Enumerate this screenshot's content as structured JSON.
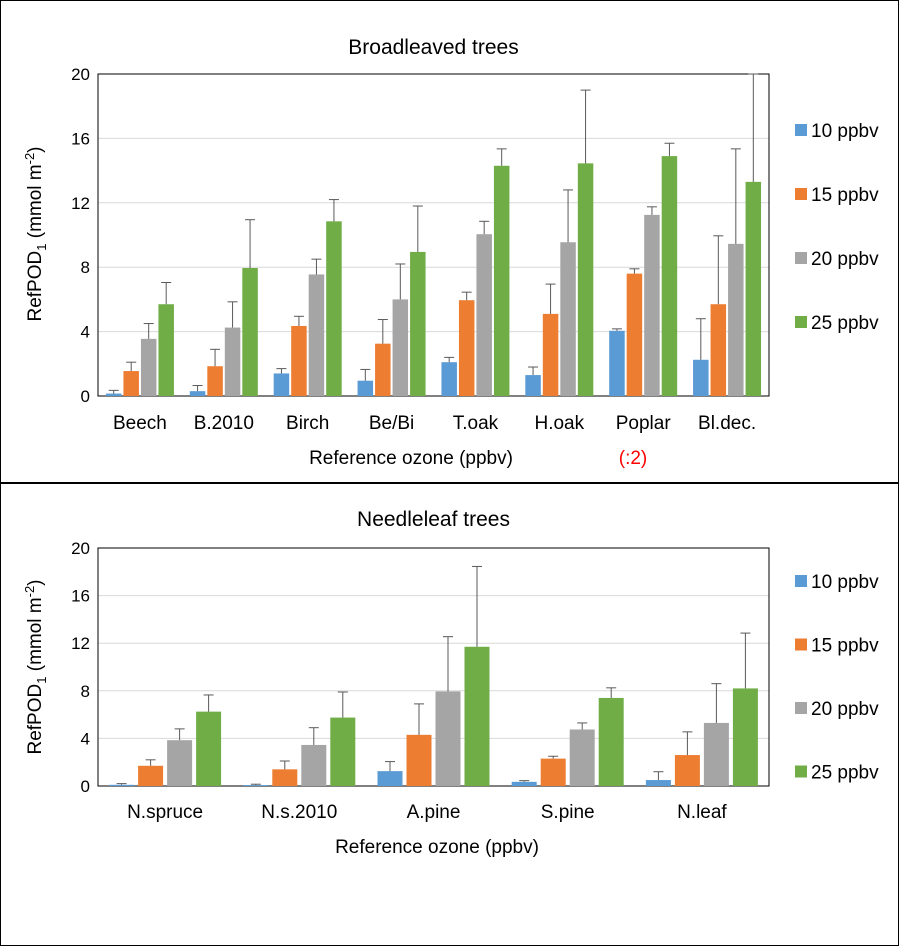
{
  "colors": {
    "10 ppbv": "#5B9BD5",
    "15 ppbv": "#ED7D31",
    "20 ppbv": "#A5A5A5",
    "25 ppbv": "#70AD47",
    "grid": "#d9d9d9",
    "error_bar": "#595959",
    "note": "#ff0000"
  },
  "chart_data": [
    {
      "type": "bar",
      "title": "Broadleaved  trees",
      "xlabel": "Reference ozone (ppbv)",
      "xlabel_note": "(:2)",
      "ylabel": "RefPOD",
      "ylabel_sub": "1",
      "ylabel_unit": " (mmol m",
      "ylabel_sup": "-2",
      "ylabel_end": ")",
      "ylim": [
        0,
        20
      ],
      "yticks": [
        "0",
        "4",
        "8",
        "12",
        "16",
        "20"
      ],
      "grid": true,
      "legend_position": "right",
      "categories": [
        "Beech",
        "B.2010",
        "Birch",
        "Be/Bi",
        "T.oak",
        "H.oak",
        "Poplar",
        "Bl.dec."
      ],
      "series": [
        {
          "name": "10 ppbv",
          "values": [
            0.15,
            0.3,
            1.4,
            0.95,
            2.1,
            1.3,
            4.05,
            2.25
          ],
          "errors": [
            0.2,
            0.35,
            0.3,
            0.7,
            0.3,
            0.5,
            0.12,
            2.55
          ]
        },
        {
          "name": "15 ppbv",
          "values": [
            1.55,
            1.85,
            4.35,
            3.25,
            5.95,
            5.1,
            7.6,
            5.7
          ],
          "errors": [
            0.55,
            1.05,
            0.6,
            1.5,
            0.5,
            1.85,
            0.3,
            4.25
          ]
        },
        {
          "name": "20 ppbv",
          "values": [
            3.55,
            4.25,
            7.55,
            6.0,
            10.05,
            9.55,
            11.25,
            9.45
          ],
          "errors": [
            0.95,
            1.6,
            0.95,
            2.2,
            0.8,
            3.25,
            0.5,
            5.9
          ]
        },
        {
          "name": "25 ppbv",
          "values": [
            5.7,
            7.95,
            10.85,
            8.95,
            14.3,
            14.45,
            14.9,
            13.3
          ],
          "errors": [
            1.35,
            3.0,
            1.35,
            2.85,
            1.05,
            4.55,
            0.8,
            6.7
          ]
        }
      ]
    },
    {
      "type": "bar",
      "title": "Needleleaf trees",
      "xlabel": "Reference ozone (ppbv)",
      "ylabel": "RefPOD",
      "ylabel_sub": "1",
      "ylabel_unit": " (mmol m",
      "ylabel_sup": "-2",
      "ylabel_end": ")",
      "ylim": [
        0,
        20
      ],
      "yticks": [
        "0",
        "4",
        "8",
        "12",
        "16",
        "20"
      ],
      "grid": true,
      "legend_position": "right",
      "categories": [
        "N.spruce",
        "N.s.2010",
        "A.pine",
        "S.pine",
        "N.leaf"
      ],
      "series": [
        {
          "name": "10 ppbv",
          "values": [
            0.1,
            0.08,
            1.25,
            0.35,
            0.5
          ],
          "errors": [
            0.1,
            0.07,
            0.8,
            0.1,
            0.7
          ]
        },
        {
          "name": "15 ppbv",
          "values": [
            1.7,
            1.4,
            4.3,
            2.3,
            2.6
          ],
          "errors": [
            0.5,
            0.7,
            2.6,
            0.2,
            1.95
          ]
        },
        {
          "name": "20 ppbv",
          "values": [
            3.85,
            3.45,
            7.95,
            4.75,
            5.3
          ],
          "errors": [
            0.95,
            1.45,
            4.6,
            0.55,
            3.3
          ]
        },
        {
          "name": "25 ppbv",
          "values": [
            6.25,
            5.75,
            11.7,
            7.4,
            8.2
          ],
          "errors": [
            1.4,
            2.15,
            6.75,
            0.85,
            4.65
          ]
        }
      ]
    }
  ]
}
